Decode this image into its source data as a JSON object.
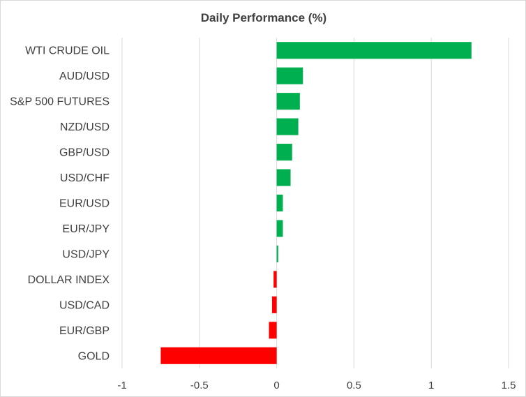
{
  "chart_data": {
    "type": "bar",
    "orientation": "horizontal",
    "title": "Daily Performance (%)",
    "categories": [
      "WTI CRUDE OIL",
      "AUD/USD",
      "S&P 500 FUTURES",
      "NZD/USD",
      "GBP/USD",
      "USD/CHF",
      "EUR/USD",
      "EUR/JPY",
      "USD/JPY",
      "DOLLAR INDEX",
      "USD/CAD",
      "EUR/GBP",
      "GOLD"
    ],
    "values": [
      1.26,
      0.17,
      0.15,
      0.14,
      0.1,
      0.09,
      0.04,
      0.04,
      0.01,
      -0.02,
      -0.03,
      -0.05,
      -0.75
    ],
    "xlim": [
      -1,
      1.5
    ],
    "xticks": [
      -1,
      -0.5,
      0,
      0.5,
      1,
      1.5
    ],
    "xtick_labels": [
      "-1",
      "-0.5",
      "0",
      "0.5",
      "1",
      "1.5"
    ],
    "grid": true,
    "legend": "none",
    "colors": {
      "positive": "#00b050",
      "negative": "#ff0000"
    }
  }
}
